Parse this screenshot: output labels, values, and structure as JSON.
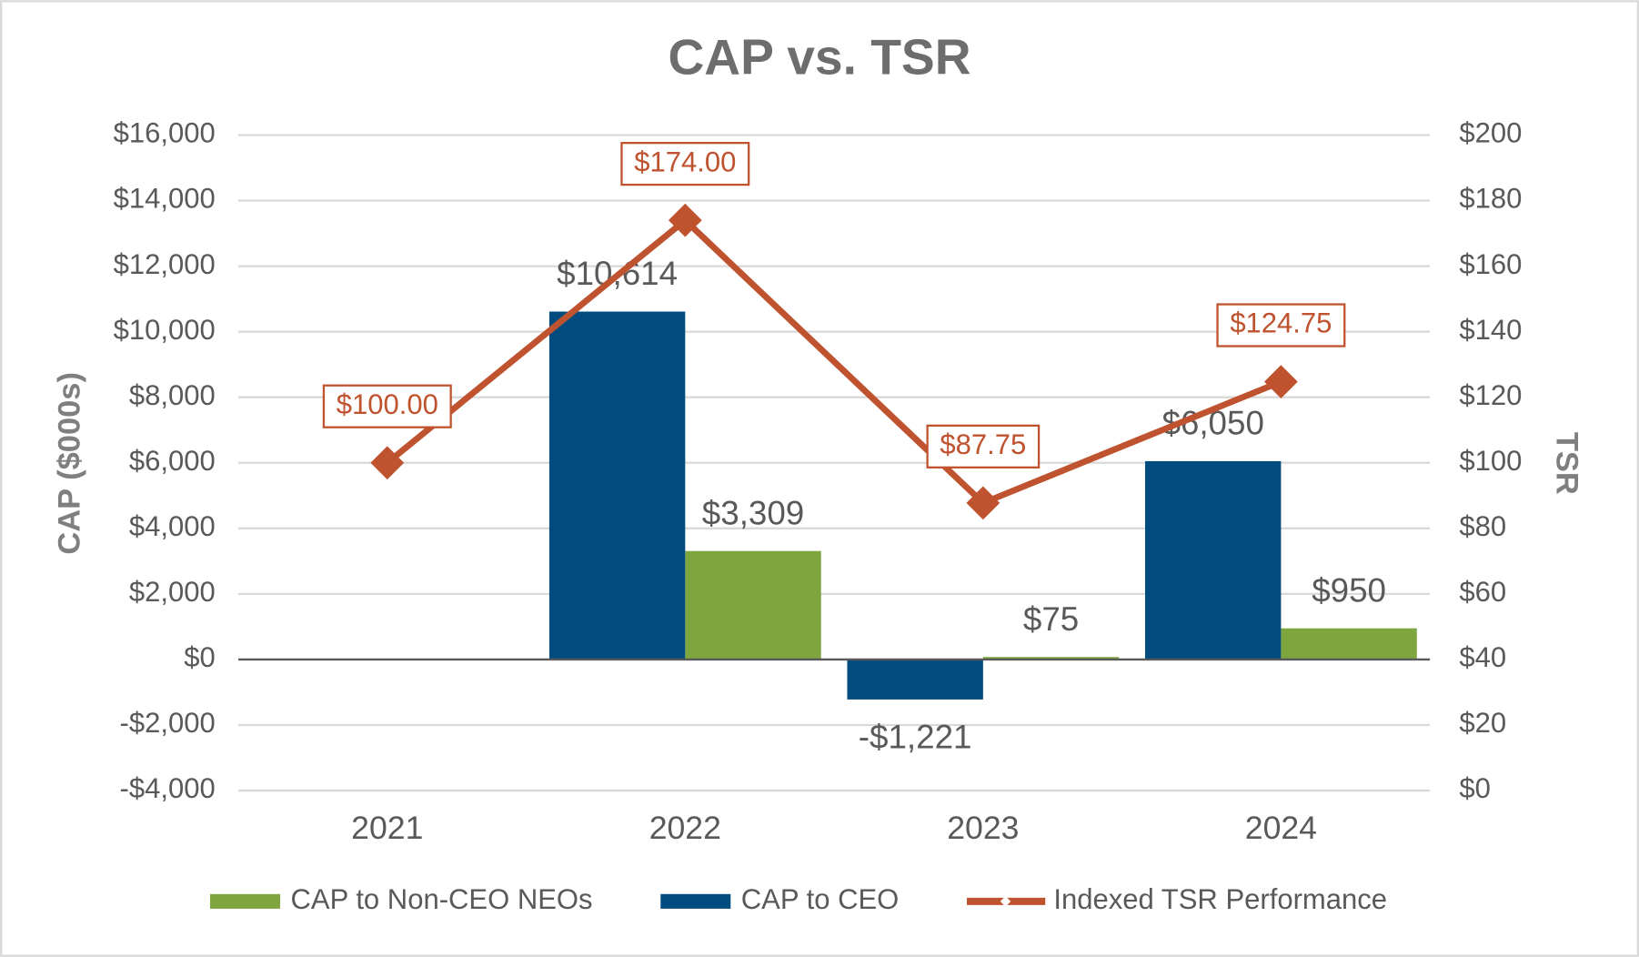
{
  "chart_data": {
    "type": "bar-line",
    "title": "CAP vs. TSR",
    "y_label": "CAP ($000s)",
    "y2_label": "TSR",
    "categories": [
      "2021",
      "2022",
      "2023",
      "2024"
    ],
    "ylim": [
      -4000,
      16000
    ],
    "yticks": [
      {
        "value": -4000,
        "label": "-$4,000"
      },
      {
        "value": -2000,
        "label": "-$2,000"
      },
      {
        "value": 0,
        "label": "$0"
      },
      {
        "value": 2000,
        "label": "$2,000"
      },
      {
        "value": 4000,
        "label": "$4,000"
      },
      {
        "value": 6000,
        "label": "$6,000"
      },
      {
        "value": 8000,
        "label": "$8,000"
      },
      {
        "value": 10000,
        "label": "$10,000"
      },
      {
        "value": 12000,
        "label": "$12,000"
      },
      {
        "value": 14000,
        "label": "$14,000"
      },
      {
        "value": 16000,
        "label": "$16,000"
      }
    ],
    "y2lim": [
      0,
      200
    ],
    "y2ticks": [
      {
        "value": 0,
        "label": "$0"
      },
      {
        "value": 20,
        "label": "$20"
      },
      {
        "value": 40,
        "label": "$40"
      },
      {
        "value": 60,
        "label": "$60"
      },
      {
        "value": 80,
        "label": "$80"
      },
      {
        "value": 100,
        "label": "$100"
      },
      {
        "value": 120,
        "label": "$120"
      },
      {
        "value": 140,
        "label": "$140"
      },
      {
        "value": 160,
        "label": "$160"
      },
      {
        "value": 180,
        "label": "$180"
      },
      {
        "value": 200,
        "label": "$200"
      }
    ],
    "grid": true,
    "legend": "bottom",
    "series": [
      {
        "name": "CAP to Non-CEO NEOs",
        "type": "bar",
        "color": "#7fa53f",
        "values": [
          null,
          3309,
          75,
          950
        ],
        "value_labels": [
          null,
          "$3,309",
          "$75",
          "$950"
        ]
      },
      {
        "name": "CAP to CEO",
        "type": "bar",
        "color": "#004c7f",
        "values": [
          null,
          10614,
          -1221,
          6050
        ],
        "value_labels": [
          null,
          "$10,614",
          "-$1,221",
          "$6,050"
        ]
      },
      {
        "name": "Indexed TSR Performance",
        "type": "line",
        "axis": "y2",
        "color": "#c0532f",
        "values": [
          100,
          174,
          87.75,
          124.75
        ],
        "value_labels": [
          "$100.00",
          "$174.00",
          "$87.75",
          "$124.75"
        ]
      }
    ]
  }
}
